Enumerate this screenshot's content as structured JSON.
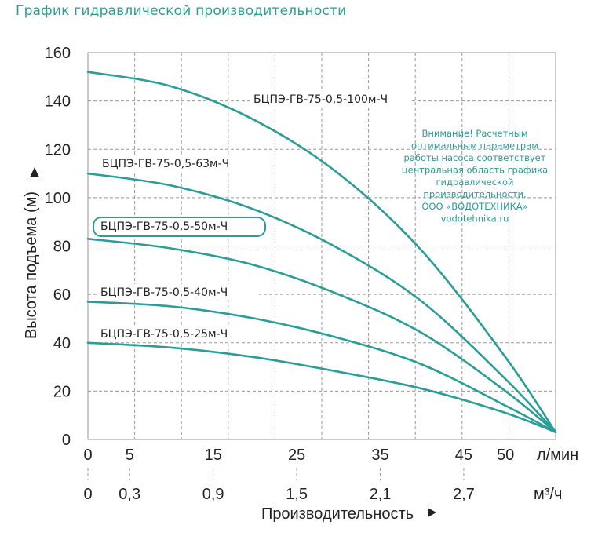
{
  "page": {
    "title": "График гидравлической производительности"
  },
  "chart_data": {
    "type": "line",
    "xlabel": "Производительность",
    "ylabel": "Высота подъема (м)",
    "x_unit_primary": "л/мин",
    "x_unit_secondary": "м³/ч",
    "x_ticks_primary": [
      "0",
      "5",
      "15",
      "25",
      "35",
      "45",
      "50"
    ],
    "x_ticks_primary_values": [
      0,
      5,
      15,
      25,
      35,
      45,
      50
    ],
    "x_ticks_secondary": [
      "0",
      "0,3",
      "0,9",
      "1,5",
      "2,1",
      "2,7"
    ],
    "x_ticks_secondary_values": [
      0,
      0.3,
      0.9,
      1.5,
      2.1,
      2.7
    ],
    "xlim": [
      0,
      56
    ],
    "y_ticks": [
      "0",
      "20",
      "40",
      "60",
      "80",
      "100",
      "120",
      "140",
      "160"
    ],
    "ylim": [
      0,
      160
    ],
    "grid": true,
    "color": "#2a9d96",
    "series": [
      {
        "name": "БЦПЭ-ГВ-75-0,5-100м-Ч",
        "x": [
          0,
          10,
          20,
          30,
          40,
          50,
          56
        ],
        "y": [
          152,
          146,
          132,
          110,
          78,
          34,
          3
        ]
      },
      {
        "name": "БЦПЭ-ГВ-75-0,5-63м-Ч",
        "x": [
          0,
          10,
          20,
          30,
          40,
          50,
          56
        ],
        "y": [
          110,
          105,
          95,
          79,
          57,
          25,
          3
        ]
      },
      {
        "name": "БЦПЭ-ГВ-75-0,5-50м-Ч",
        "x": [
          0,
          10,
          20,
          30,
          40,
          50,
          56
        ],
        "y": [
          83,
          79,
          72,
          60,
          44,
          20,
          3
        ]
      },
      {
        "name": "БЦПЭ-ГВ-75-0,5-40м-Ч",
        "x": [
          0,
          10,
          20,
          30,
          40,
          50,
          56
        ],
        "y": [
          57,
          55,
          50,
          42,
          31,
          14,
          3
        ]
      },
      {
        "name": "БЦПЭ-ГВ-75-0,5-25м-Ч",
        "x": [
          0,
          10,
          20,
          30,
          40,
          50,
          56
        ],
        "y": [
          40,
          38,
          34,
          28,
          21,
          11,
          3
        ]
      }
    ],
    "highlighted_series": "БЦПЭ-ГВ-75-0,5-50м-Ч",
    "annotation": [
      "Внимание! Расчетным",
      "оптимальным параметрам",
      "работы насоса соответствует",
      "центральная область графика",
      "гидравлической",
      "производительности.",
      "ООО «ВОДОТЕХНИКА»",
      "vodotehnika.ru"
    ]
  }
}
